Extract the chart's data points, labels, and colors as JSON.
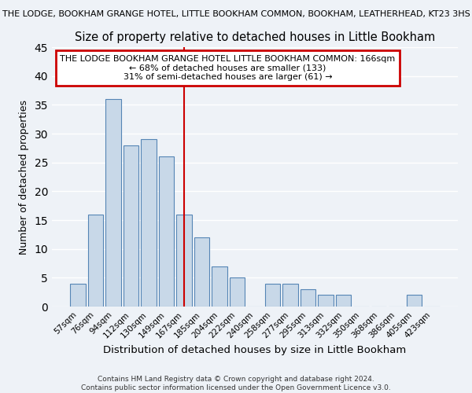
{
  "title_top": "THE LODGE, BOOKHAM GRANGE HOTEL, LITTLE BOOKHAM COMMON, BOOKHAM, LEATHERHEAD, KT23 3HS",
  "title_main": "Size of property relative to detached houses in Little Bookham",
  "xlabel": "Distribution of detached houses by size in Little Bookham",
  "ylabel": "Number of detached properties",
  "categories": [
    "57sqm",
    "76sqm",
    "94sqm",
    "112sqm",
    "130sqm",
    "149sqm",
    "167sqm",
    "185sqm",
    "204sqm",
    "222sqm",
    "240sqm",
    "258sqm",
    "277sqm",
    "295sqm",
    "313sqm",
    "332sqm",
    "350sqm",
    "368sqm",
    "386sqm",
    "405sqm",
    "423sqm"
  ],
  "values": [
    4,
    16,
    36,
    28,
    29,
    26,
    16,
    12,
    7,
    5,
    0,
    4,
    4,
    3,
    2,
    2,
    0,
    0,
    0,
    2,
    0
  ],
  "bar_color": "#c8d8e8",
  "bar_edge_color": "#5585b5",
  "vline_index": 6,
  "vline_color": "#cc0000",
  "ylim": [
    0,
    45
  ],
  "yticks": [
    0,
    5,
    10,
    15,
    20,
    25,
    30,
    35,
    40,
    45
  ],
  "annotation_line1": "THE LODGE BOOKHAM GRANGE HOTEL LITTLE BOOKHAM COMMON: 166sqm",
  "annotation_line2": "← 68% of detached houses are smaller (133)",
  "annotation_line3": "31% of semi-detached houses are larger (61) →",
  "annotation_box_color": "#cc0000",
  "footer_line1": "Contains HM Land Registry data © Crown copyright and database right 2024.",
  "footer_line2": "Contains public sector information licensed under the Open Government Licence v3.0.",
  "background_color": "#eef2f7",
  "grid_color": "#ffffff"
}
